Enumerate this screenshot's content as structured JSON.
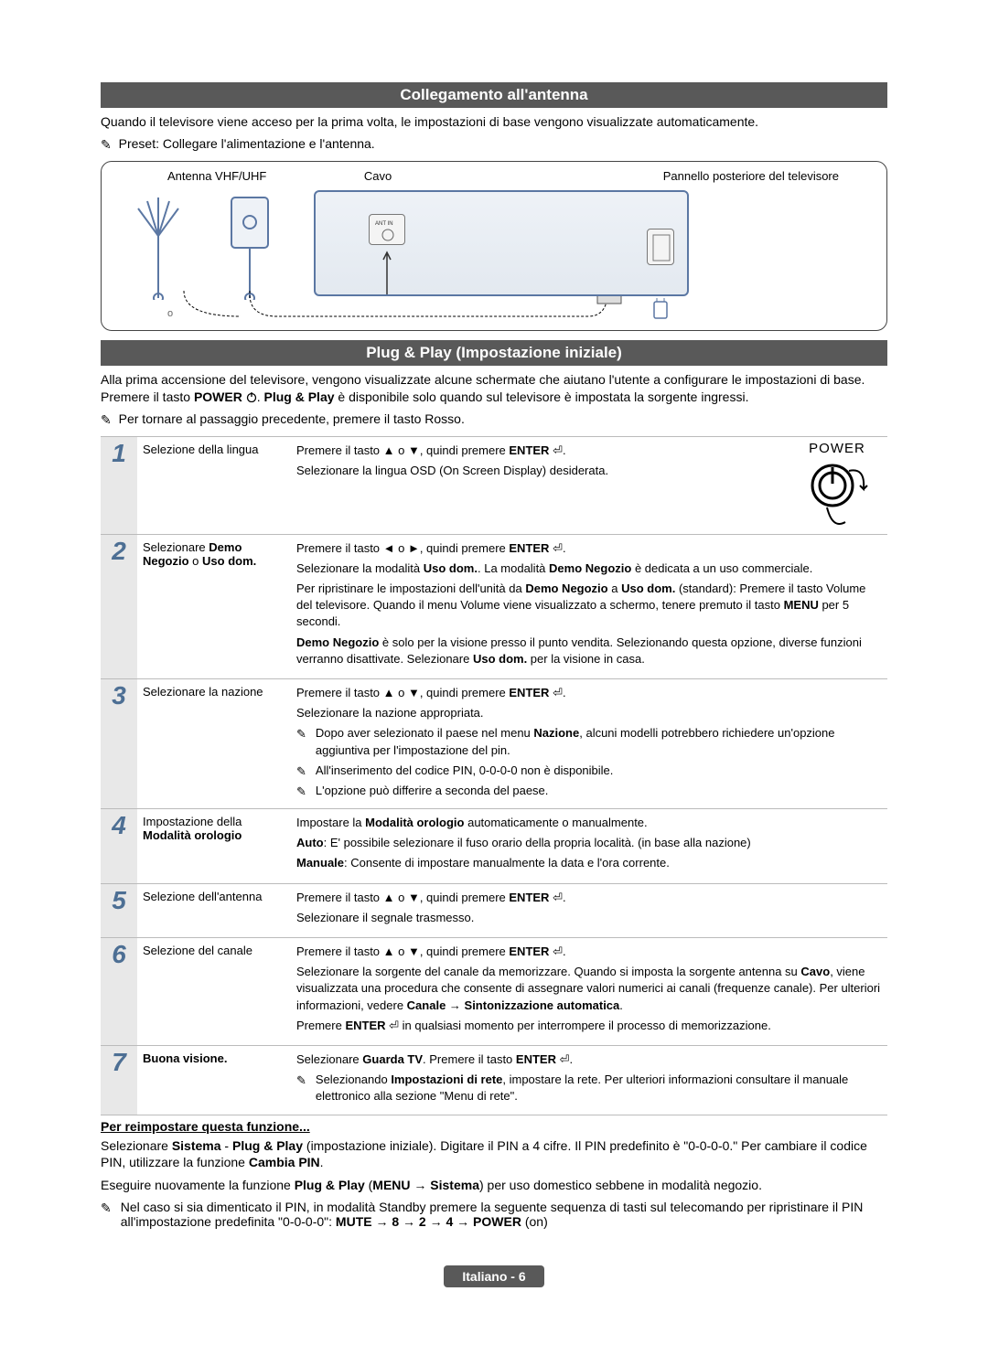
{
  "section1": {
    "title": "Collegamento all'antenna",
    "intro": "Quando il televisore viene acceso per la prima volta, le impostazioni di base vengono visualizzate automaticamente.",
    "preset_note": "Preset: Collegare l'alimentazione e l'antenna.",
    "diagram": {
      "label_antenna": "Antenna VHF/UHF",
      "label_cavo": "Cavo",
      "label_panel": "Pannello posteriore del televisore"
    }
  },
  "section2": {
    "title": "Plug & Play (Impostazione iniziale)",
    "intro1": "Alla prima accensione del televisore, vengono visualizzate alcune schermate che aiutano l'utente a configurare le impostazioni di base. Premere il tasto ",
    "intro_power": "POWER",
    "intro2": ". ",
    "intro_pp": "Plug & Play",
    "intro3": " è disponibile solo quando sul televisore è impostata la sorgente ingressi.",
    "back_note": "Per tornare al passaggio precedente, premere il tasto Rosso.",
    "power_label": "POWER"
  },
  "steps": [
    {
      "num": "1",
      "title": "Selezione della lingua",
      "lines": [
        "Premere il tasto ▲ o ▼, quindi premere <b>ENTER</b> ⏎.",
        "Selezionare la lingua OSD (On Screen Display) desiderata."
      ]
    },
    {
      "num": "2",
      "title_html": "Selezionare <b>Demo Negozio</b> o <b>Uso dom.</b>",
      "lines": [
        "Premere il tasto ◄ o ►, quindi premere <b>ENTER</b> ⏎.",
        "Selezionare la modalità <b>Uso dom.</b>. La modalità <b>Demo Negozio</b> è dedicata a un uso commerciale.",
        "Per ripristinare le impostazioni dell'unità da <b>Demo Negozio</b> a <b>Uso dom.</b> (standard): Premere il tasto Volume del televisore. Quando il menu Volume viene visualizzato a schermo, tenere premuto il tasto <b>MENU</b> per 5 secondi.",
        "<b>Demo Negozio</b> è solo per la visione presso il punto vendita. Selezionando questa opzione, diverse funzioni verranno disattivate. Selezionare <b>Uso dom.</b> per la visione in casa."
      ]
    },
    {
      "num": "3",
      "title": "Selezionare la nazione",
      "lines": [
        "Premere il tasto ▲ o ▼, quindi premere <b>ENTER</b> ⏎.",
        "Selezionare la nazione appropriata."
      ],
      "notes": [
        "Dopo aver selezionato il paese nel menu <b>Nazione</b>, alcuni modelli potrebbero richiedere un'opzione aggiuntiva per l'impostazione del pin.",
        "All'inserimento del codice PIN, 0-0-0-0 non è disponibile.",
        "L'opzione può differire a seconda del paese."
      ]
    },
    {
      "num": "4",
      "title_html": "Impostazione della <b>Modalità orologio</b>",
      "lines": [
        "Impostare la <b>Modalità orologio</b> automaticamente o manualmente.",
        "<b>Auto</b>: E' possibile selezionare il fuso orario della propria località. (in base alla nazione)",
        "<b>Manuale</b>: Consente di impostare manualmente la data e l'ora corrente."
      ]
    },
    {
      "num": "5",
      "title": "Selezione dell'antenna",
      "lines": [
        "Premere il tasto ▲ o ▼, quindi premere <b>ENTER</b> ⏎.",
        "Selezionare il segnale trasmesso."
      ]
    },
    {
      "num": "6",
      "title": "Selezione del canale",
      "lines": [
        "Premere il tasto ▲ o ▼, quindi premere <b>ENTER</b> ⏎.",
        "Selezionare la sorgente del canale da memorizzare. Quando si imposta la sorgente antenna su <b>Cavo</b>, viene visualizzata una procedura che consente di assegnare valori numerici ai canali (frequenze canale). Per ulteriori informazioni, vedere <b>Canale → Sintonizzazione automatica</b>.",
        "Premere <b>ENTER</b> ⏎ in qualsiasi momento per interrompere il processo di memorizzazione."
      ]
    },
    {
      "num": "7",
      "title_html": "<b>Buona visione.</b>",
      "lines": [
        "Selezionare <b>Guarda TV</b>. Premere il tasto <b>ENTER</b> ⏎."
      ],
      "notes": [
        "Selezionando <b>Impostazioni di rete</b>, impostare la rete. Per ulteriori informazioni consultare il manuale elettronico alla sezione \"Menu di rete\"."
      ]
    }
  ],
  "reset": {
    "heading": "Per reimpostare questa funzione...",
    "p1_a": "Selezionare ",
    "p1_b": "Sistema",
    "p1_c": " - ",
    "p1_d": "Plug & Play",
    "p1_e": " (impostazione iniziale). Digitare il PIN a 4 cifre. Il PIN predefinito è \"0-0-0-0.\" Per cambiare il codice PIN, utilizzare la funzione ",
    "p1_f": "Cambia PIN",
    "p1_g": ".",
    "p2_a": "Eseguire nuovamente la funzione ",
    "p2_b": "Plug & Play",
    "p2_c": " (",
    "p2_d": "MENU → Sistema",
    "p2_e": ") per uso domestico sebbene in modalità negozio.",
    "note": "Nel caso si sia dimenticato il PIN, in modalità Standby premere la seguente sequenza di tasti sul telecomando per ripristinare il PIN all'impostazione predefinita \"0-0-0-0\": ",
    "note_seq": "MUTE → 8 → 2 → 4 → POWER",
    "note_tail": " (on)"
  },
  "footer": {
    "page": "Italiano - 6"
  }
}
